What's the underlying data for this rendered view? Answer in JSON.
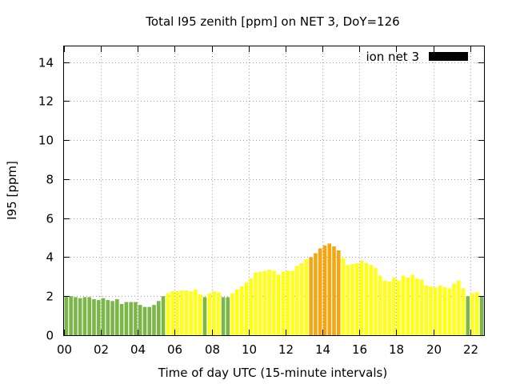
{
  "chart_data": {
    "type": "bar",
    "title": "Total I95 zenith [ppm] on NET 3, DoY=126",
    "xlabel": "Time of day UTC (15-minute intervals)",
    "ylabel": "I95 [ppm]",
    "ylim": [
      0,
      14.8
    ],
    "xlim": [
      0,
      22.75
    ],
    "yticks": [
      "0",
      "2",
      "4",
      "6",
      "8",
      "10",
      "12",
      "14"
    ],
    "xticks": [
      "00",
      "02",
      "04",
      "06",
      "08",
      "10",
      "12",
      "14",
      "16",
      "18",
      "20",
      "22"
    ],
    "grid": true,
    "legend_position": "top-right",
    "series": [
      {
        "name": "ion net 3",
        "legend_color": "#000000",
        "values": [
          2.0,
          2.0,
          1.95,
          1.9,
          1.95,
          1.95,
          1.85,
          1.8,
          1.9,
          1.8,
          1.75,
          1.85,
          1.6,
          1.7,
          1.7,
          1.7,
          1.55,
          1.45,
          1.45,
          1.55,
          1.75,
          2.0,
          2.15,
          2.25,
          2.25,
          2.3,
          2.3,
          2.25,
          2.35,
          2.1,
          1.95,
          2.15,
          2.25,
          2.2,
          1.95,
          1.95,
          2.15,
          2.35,
          2.5,
          2.7,
          2.9,
          3.2,
          3.25,
          3.3,
          3.35,
          3.3,
          3.1,
          3.25,
          3.3,
          3.3,
          3.55,
          3.7,
          3.9,
          4.0,
          4.2,
          4.45,
          4.6,
          4.7,
          4.55,
          4.35,
          3.95,
          3.6,
          3.65,
          3.7,
          3.8,
          3.7,
          3.6,
          3.45,
          3.05,
          2.8,
          2.75,
          2.95,
          2.8,
          3.05,
          2.95,
          3.1,
          2.9,
          2.85,
          2.55,
          2.5,
          2.45,
          2.55,
          2.45,
          2.4,
          2.65,
          2.8,
          2.4,
          2.0,
          2.15,
          2.2,
          2.0
        ],
        "levels": [
          "green",
          "green",
          "green",
          "green",
          "green",
          "green",
          "green",
          "green",
          "green",
          "green",
          "green",
          "green",
          "green",
          "green",
          "green",
          "green",
          "green",
          "green",
          "green",
          "green",
          "green",
          "green",
          "yellow",
          "yellow",
          "yellow",
          "yellow",
          "yellow",
          "yellow",
          "yellow",
          "yellow",
          "green",
          "yellow",
          "yellow",
          "yellow",
          "green",
          "green",
          "yellow",
          "yellow",
          "yellow",
          "yellow",
          "yellow",
          "yellow",
          "yellow",
          "yellow",
          "yellow",
          "yellow",
          "yellow",
          "yellow",
          "yellow",
          "yellow",
          "yellow",
          "yellow",
          "yellow",
          "orange",
          "orange",
          "orange",
          "orange",
          "orange",
          "orange",
          "orange",
          "yellow",
          "yellow",
          "yellow",
          "yellow",
          "yellow",
          "yellow",
          "yellow",
          "yellow",
          "yellow",
          "yellow",
          "yellow",
          "yellow",
          "yellow",
          "yellow",
          "yellow",
          "yellow",
          "yellow",
          "yellow",
          "yellow",
          "yellow",
          "yellow",
          "yellow",
          "yellow",
          "yellow",
          "yellow",
          "yellow",
          "yellow",
          "green",
          "yellow",
          "yellow",
          "green"
        ]
      }
    ],
    "colors": {
      "green": "#7ab648",
      "yellow": "#ffff19",
      "orange": "#f5a614"
    }
  }
}
